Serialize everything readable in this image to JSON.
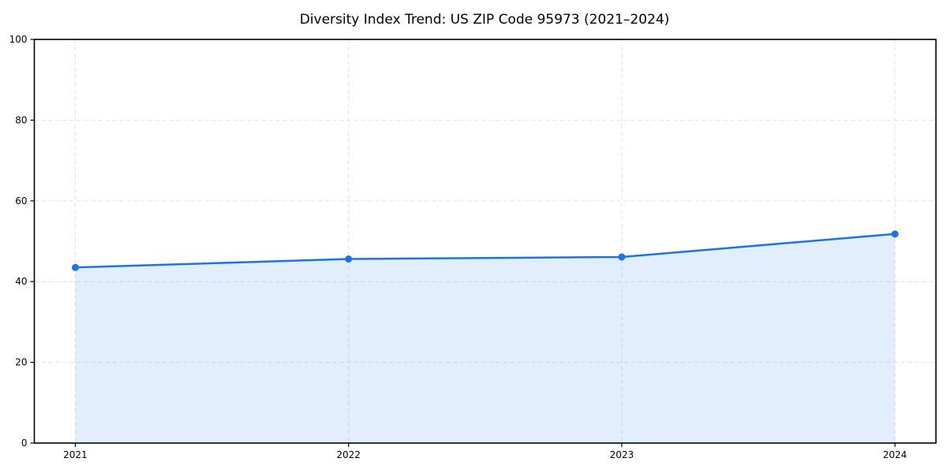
{
  "chart_data": {
    "type": "line",
    "title": "Diversity Index Trend: US ZIP Code 95973 (2021–2024)",
    "x": [
      2021,
      2022,
      2023,
      2024
    ],
    "series": [
      {
        "name": "Diversity Index",
        "values": [
          43.5,
          45.6,
          46.1,
          51.8
        ]
      }
    ],
    "xlabel": "",
    "ylabel": "",
    "xlim_padding_fraction": 0.05,
    "ylim": [
      0,
      100
    ],
    "yticks": [
      0,
      20,
      40,
      60,
      80,
      100
    ],
    "xticks": [
      2021,
      2022,
      2023,
      2024
    ],
    "grid": true,
    "grid_style": "dashed",
    "grid_color": "#e0e0e0",
    "legend_position": "none",
    "line_color": "#1a73e8",
    "marker": "circle",
    "fill_under_line": true,
    "fill_color": "#1a73e8",
    "fill_opacity": 0.12,
    "spine_color": "#000000",
    "background_color": "#ffffff"
  }
}
